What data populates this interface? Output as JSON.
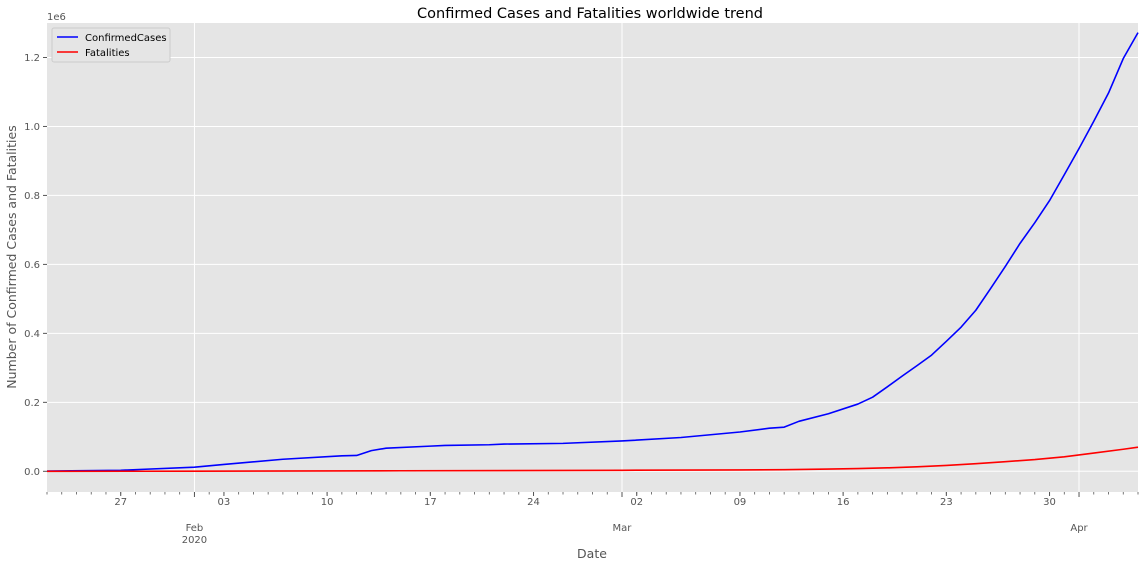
{
  "chart_data": {
    "type": "line",
    "title": "Confirmed Cases and Fatalities worldwide trend",
    "xlabel": "Date",
    "ylabel": "Number of Confirmed Cases and Fatalities",
    "y_offset_label": "1e6",
    "ylim": [
      -0.06,
      1.3
    ],
    "y_ticks": [
      {
        "value": 0.0,
        "label": "0.0"
      },
      {
        "value": 0.2,
        "label": "0.2"
      },
      {
        "value": 0.4,
        "label": "0.4"
      },
      {
        "value": 0.6,
        "label": "0.6"
      },
      {
        "value": 0.8,
        "label": "0.8"
      },
      {
        "value": 1.0,
        "label": "1.0"
      },
      {
        "value": 1.2,
        "label": "1.2"
      }
    ],
    "x_range": [
      "2020-01-22",
      "2020-04-05"
    ],
    "x_ticks": [
      {
        "date": "2020-01-27",
        "label": "27"
      },
      {
        "date": "2020-02-01",
        "label": "Feb",
        "label2": "2020",
        "major": true
      },
      {
        "date": "2020-02-03",
        "label": "03"
      },
      {
        "date": "2020-02-10",
        "label": "10"
      },
      {
        "date": "2020-02-17",
        "label": "17"
      },
      {
        "date": "2020-02-24",
        "label": "24"
      },
      {
        "date": "2020-03-01",
        "label": "Mar",
        "major": true
      },
      {
        "date": "2020-03-02",
        "label": "02"
      },
      {
        "date": "2020-03-09",
        "label": "09"
      },
      {
        "date": "2020-03-16",
        "label": "16"
      },
      {
        "date": "2020-03-23",
        "label": "23"
      },
      {
        "date": "2020-03-30",
        "label": "30"
      },
      {
        "date": "2020-04-01",
        "label": "Apr",
        "major": true
      }
    ],
    "grid": true,
    "legend_position": "top-left",
    "series": [
      {
        "name": "ConfirmedCases",
        "color": "#0000ff",
        "points": [
          [
            "2020-01-22",
            0.0006
          ],
          [
            "2020-01-27",
            0.003
          ],
          [
            "2020-02-01",
            0.012
          ],
          [
            "2020-02-03",
            0.02
          ],
          [
            "2020-02-07",
            0.035
          ],
          [
            "2020-02-11",
            0.045
          ],
          [
            "2020-02-12",
            0.046
          ],
          [
            "2020-02-13",
            0.06
          ],
          [
            "2020-02-14",
            0.067
          ],
          [
            "2020-02-17",
            0.073
          ],
          [
            "2020-02-18",
            0.075
          ],
          [
            "2020-02-21",
            0.077
          ],
          [
            "2020-02-22",
            0.079
          ],
          [
            "2020-02-26",
            0.081
          ],
          [
            "2020-03-01",
            0.088
          ],
          [
            "2020-03-05",
            0.098
          ],
          [
            "2020-03-09",
            0.114
          ],
          [
            "2020-03-11",
            0.125
          ],
          [
            "2020-03-12",
            0.128
          ],
          [
            "2020-03-13",
            0.145
          ],
          [
            "2020-03-15",
            0.167
          ],
          [
            "2020-03-17",
            0.195
          ],
          [
            "2020-03-18",
            0.215
          ],
          [
            "2020-03-19",
            0.245
          ],
          [
            "2020-03-20",
            0.276
          ],
          [
            "2020-03-21",
            0.306
          ],
          [
            "2020-03-22",
            0.337
          ],
          [
            "2020-03-23",
            0.377
          ],
          [
            "2020-03-24",
            0.418
          ],
          [
            "2020-03-25",
            0.467
          ],
          [
            "2020-03-26",
            0.53
          ],
          [
            "2020-03-27",
            0.594
          ],
          [
            "2020-03-28",
            0.661
          ],
          [
            "2020-03-29",
            0.721
          ],
          [
            "2020-03-30",
            0.785
          ],
          [
            "2020-03-31",
            0.86
          ],
          [
            "2020-04-01",
            0.936
          ],
          [
            "2020-04-02",
            1.015
          ],
          [
            "2020-04-03",
            1.097
          ],
          [
            "2020-04-04",
            1.197
          ],
          [
            "2020-04-05",
            1.272
          ]
        ]
      },
      {
        "name": "Fatalities",
        "color": "#ff0000",
        "points": [
          [
            "2020-01-22",
            2e-05
          ],
          [
            "2020-02-01",
            0.0003
          ],
          [
            "2020-02-15",
            0.0016
          ],
          [
            "2020-03-01",
            0.003
          ],
          [
            "2020-03-09",
            0.004
          ],
          [
            "2020-03-12",
            0.0048
          ],
          [
            "2020-03-15",
            0.0065
          ],
          [
            "2020-03-17",
            0.008
          ],
          [
            "2020-03-19",
            0.01
          ],
          [
            "2020-03-21",
            0.013
          ],
          [
            "2020-03-23",
            0.017
          ],
          [
            "2020-03-25",
            0.022
          ],
          [
            "2020-03-27",
            0.028
          ],
          [
            "2020-03-29",
            0.034
          ],
          [
            "2020-03-31",
            0.042
          ],
          [
            "2020-04-02",
            0.053
          ],
          [
            "2020-04-04",
            0.064
          ],
          [
            "2020-04-05",
            0.07
          ]
        ]
      }
    ]
  }
}
